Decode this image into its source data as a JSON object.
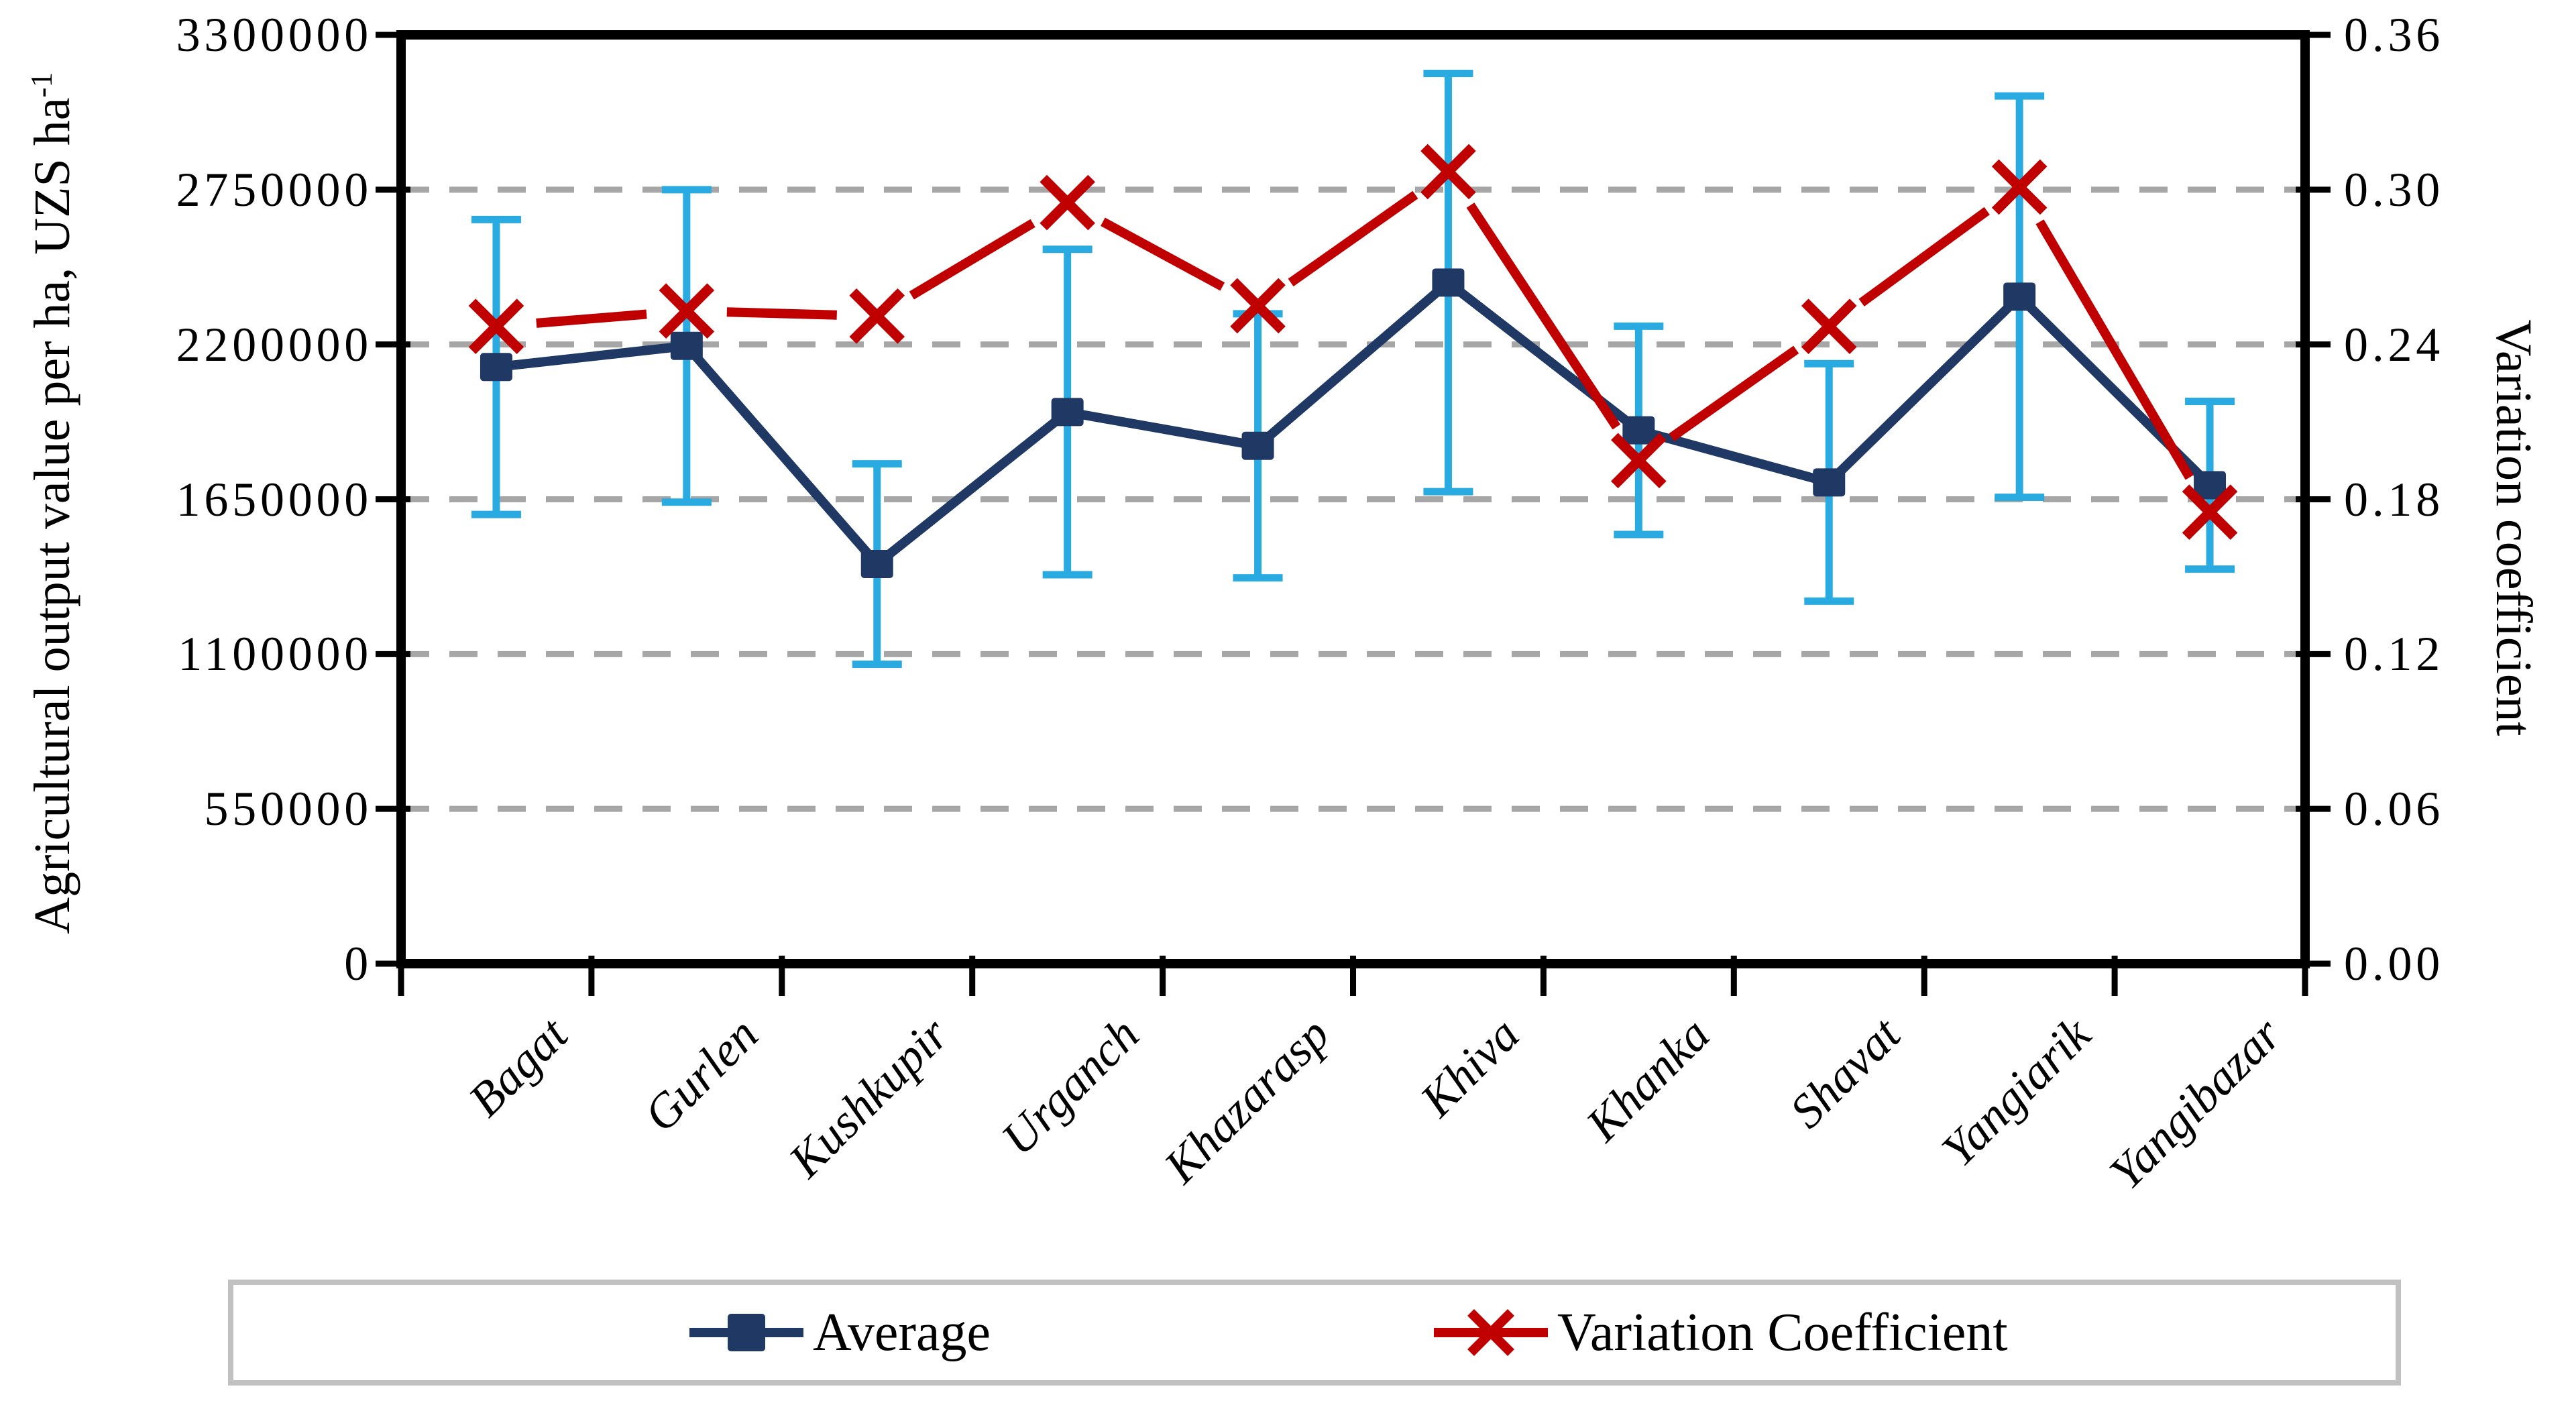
{
  "chart_data": {
    "type": "line",
    "title": "",
    "categories": [
      "Bagat",
      "Gurlen",
      "Kushkupir",
      "Urganch",
      "Khazarasp",
      "Khiva",
      "Khanka",
      "Shavat",
      "Yangiarik",
      "Yangibazar"
    ],
    "series": [
      {
        "name": "Average",
        "axis": "left",
        "color": "#1f3864",
        "marker": "square",
        "values": [
          2120000,
          2195000,
          1420000,
          1960000,
          1840000,
          2420000,
          1895000,
          1710000,
          2370000,
          1700000
        ],
        "error": [
          524000,
          555000,
          356000,
          578000,
          469000,
          743000,
          370000,
          422000,
          713000,
          298000
        ],
        "error_color": "#29abe2"
      },
      {
        "name": "Variation Coefficient",
        "axis": "right",
        "color": "#c00000",
        "marker": "x",
        "values": [
          0.247,
          0.253,
          0.251,
          0.295,
          0.255,
          0.307,
          0.195,
          0.247,
          0.301,
          0.175
        ]
      }
    ],
    "y_left": {
      "label": "Agricultural output value per ha, UZS ha",
      "label_sup": "-1",
      "min": 0,
      "max": 3300000,
      "tick_labels": [
        "3300000",
        "2750000",
        "2200000",
        "1650000",
        "1100000",
        "550000",
        "0"
      ],
      "tick_values": [
        3300000,
        2750000,
        2200000,
        1650000,
        1100000,
        550000,
        0
      ]
    },
    "y_right": {
      "label": "Variation coefficient",
      "min": 0,
      "max": 0.36,
      "tick_labels": [
        "0.36",
        "0.30",
        "0.24",
        "0.18",
        "0.12",
        "0.06",
        "0.00"
      ],
      "tick_values": [
        0.36,
        0.3,
        0.24,
        0.18,
        0.12,
        0.06,
        0
      ]
    },
    "grid": {
      "color": "#a6a6a6",
      "dash": "42 30",
      "lines_at": [
        2750000,
        2200000,
        1650000,
        1100000,
        550000
      ],
      "orientation": "horizontal"
    },
    "legend": {
      "position": "bottom",
      "border_color": "#c1c1c1",
      "items": [
        "Average",
        "Variation Coefficient"
      ]
    }
  }
}
